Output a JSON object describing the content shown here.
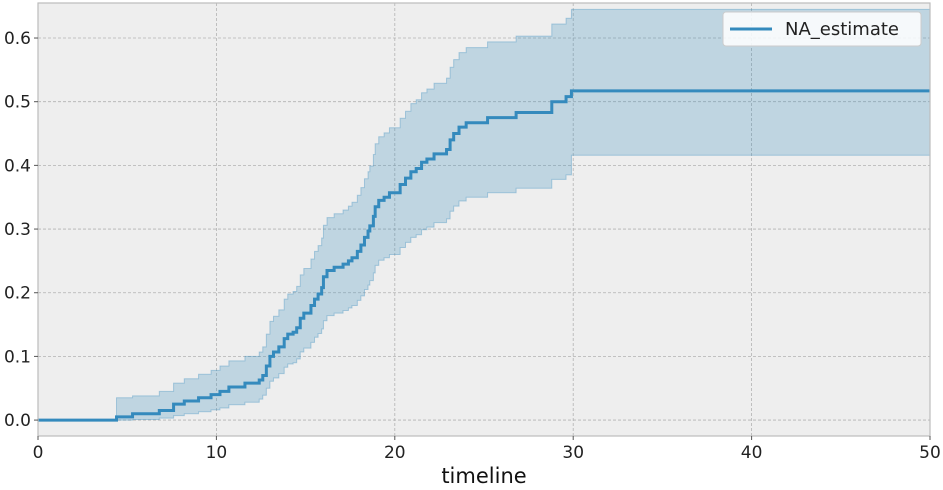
{
  "chart_data": {
    "type": "line",
    "title": "",
    "xlabel": "timeline",
    "ylabel": "",
    "xlim": [
      0,
      50
    ],
    "ylim": [
      -0.025,
      0.655
    ],
    "x_ticks": [
      0,
      10,
      20,
      30,
      40,
      50
    ],
    "y_ticks": [
      0.0,
      0.1,
      0.2,
      0.3,
      0.4,
      0.5,
      0.6
    ],
    "grid": true,
    "legend": {
      "placement": "top-right",
      "entries": [
        "NA_estimate"
      ]
    },
    "colors": {
      "line": "#348ABD",
      "band": "#348ABD",
      "background": "#EEEEEE",
      "grid": "#B2B2B2"
    },
    "series": [
      {
        "name": "NA_estimate",
        "step": "post",
        "points": [
          [
            0,
            0.0
          ],
          [
            4.4,
            0.005
          ],
          [
            5.3,
            0.01
          ],
          [
            6.8,
            0.015
          ],
          [
            7.6,
            0.025
          ],
          [
            8.2,
            0.03
          ],
          [
            9.0,
            0.035
          ],
          [
            9.7,
            0.04
          ],
          [
            10.2,
            0.045
          ],
          [
            10.7,
            0.052
          ],
          [
            11.6,
            0.058
          ],
          [
            12.4,
            0.063
          ],
          [
            12.6,
            0.07
          ],
          [
            12.8,
            0.085
          ],
          [
            13.0,
            0.1
          ],
          [
            13.2,
            0.107
          ],
          [
            13.5,
            0.115
          ],
          [
            13.8,
            0.128
          ],
          [
            14.0,
            0.135
          ],
          [
            14.3,
            0.138
          ],
          [
            14.5,
            0.145
          ],
          [
            14.7,
            0.16
          ],
          [
            14.9,
            0.168
          ],
          [
            15.3,
            0.18
          ],
          [
            15.5,
            0.19
          ],
          [
            15.7,
            0.198
          ],
          [
            15.9,
            0.208
          ],
          [
            16.0,
            0.225
          ],
          [
            16.2,
            0.235
          ],
          [
            16.6,
            0.24
          ],
          [
            17.1,
            0.245
          ],
          [
            17.4,
            0.25
          ],
          [
            17.6,
            0.255
          ],
          [
            17.9,
            0.265
          ],
          [
            18.1,
            0.275
          ],
          [
            18.3,
            0.287
          ],
          [
            18.5,
            0.297
          ],
          [
            18.6,
            0.305
          ],
          [
            18.8,
            0.32
          ],
          [
            18.9,
            0.335
          ],
          [
            19.1,
            0.345
          ],
          [
            19.4,
            0.35
          ],
          [
            19.7,
            0.357
          ],
          [
            20.3,
            0.37
          ],
          [
            20.6,
            0.38
          ],
          [
            20.9,
            0.39
          ],
          [
            21.2,
            0.395
          ],
          [
            21.5,
            0.405
          ],
          [
            21.8,
            0.41
          ],
          [
            22.2,
            0.418
          ],
          [
            22.9,
            0.425
          ],
          [
            23.1,
            0.44
          ],
          [
            23.3,
            0.45
          ],
          [
            23.6,
            0.46
          ],
          [
            24.0,
            0.467
          ],
          [
            25.2,
            0.475
          ],
          [
            26.8,
            0.483
          ],
          [
            28.8,
            0.5
          ],
          [
            29.6,
            0.508
          ],
          [
            29.9,
            0.517
          ],
          [
            50,
            0.517
          ]
        ],
        "lower": [
          [
            0,
            0.0
          ],
          [
            4.4,
            0.0
          ],
          [
            5.3,
            0.001
          ],
          [
            6.8,
            0.003
          ],
          [
            7.6,
            0.007
          ],
          [
            8.2,
            0.01
          ],
          [
            9.0,
            0.013
          ],
          [
            9.7,
            0.016
          ],
          [
            10.2,
            0.019
          ],
          [
            10.7,
            0.024
          ],
          [
            11.6,
            0.028
          ],
          [
            12.4,
            0.033
          ],
          [
            12.6,
            0.039
          ],
          [
            12.8,
            0.05
          ],
          [
            13.0,
            0.061
          ],
          [
            13.2,
            0.066
          ],
          [
            13.5,
            0.073
          ],
          [
            13.8,
            0.083
          ],
          [
            14.0,
            0.088
          ],
          [
            14.3,
            0.09
          ],
          [
            14.5,
            0.096
          ],
          [
            14.7,
            0.107
          ],
          [
            14.9,
            0.113
          ],
          [
            15.3,
            0.122
          ],
          [
            15.5,
            0.13
          ],
          [
            15.7,
            0.136
          ],
          [
            15.9,
            0.143
          ],
          [
            16.0,
            0.156
          ],
          [
            16.2,
            0.164
          ],
          [
            16.6,
            0.168
          ],
          [
            17.1,
            0.172
          ],
          [
            17.4,
            0.176
          ],
          [
            17.6,
            0.18
          ],
          [
            17.9,
            0.188
          ],
          [
            18.1,
            0.195
          ],
          [
            18.3,
            0.205
          ],
          [
            18.5,
            0.212
          ],
          [
            18.6,
            0.219
          ],
          [
            18.8,
            0.231
          ],
          [
            18.9,
            0.243
          ],
          [
            19.1,
            0.251
          ],
          [
            19.4,
            0.255
          ],
          [
            19.7,
            0.26
          ],
          [
            20.3,
            0.271
          ],
          [
            20.6,
            0.279
          ],
          [
            20.9,
            0.287
          ],
          [
            21.2,
            0.291
          ],
          [
            21.5,
            0.299
          ],
          [
            21.8,
            0.303
          ],
          [
            22.2,
            0.31
          ],
          [
            22.9,
            0.316
          ],
          [
            23.1,
            0.328
          ],
          [
            23.3,
            0.336
          ],
          [
            23.6,
            0.344
          ],
          [
            24.0,
            0.35
          ],
          [
            25.2,
            0.357
          ],
          [
            26.8,
            0.364
          ],
          [
            28.8,
            0.378
          ],
          [
            29.6,
            0.385
          ],
          [
            29.9,
            0.416
          ],
          [
            50,
            0.416
          ]
        ],
        "upper": [
          [
            0,
            0.0
          ],
          [
            4.4,
            0.035
          ],
          [
            5.3,
            0.038
          ],
          [
            6.8,
            0.045
          ],
          [
            7.6,
            0.058
          ],
          [
            8.2,
            0.065
          ],
          [
            9.0,
            0.072
          ],
          [
            9.7,
            0.078
          ],
          [
            10.2,
            0.085
          ],
          [
            10.7,
            0.093
          ],
          [
            11.6,
            0.1
          ],
          [
            12.4,
            0.107
          ],
          [
            12.6,
            0.115
          ],
          [
            12.8,
            0.135
          ],
          [
            13.0,
            0.155
          ],
          [
            13.2,
            0.163
          ],
          [
            13.5,
            0.173
          ],
          [
            13.8,
            0.19
          ],
          [
            14.0,
            0.198
          ],
          [
            14.3,
            0.202
          ],
          [
            14.5,
            0.21
          ],
          [
            14.7,
            0.228
          ],
          [
            14.9,
            0.238
          ],
          [
            15.3,
            0.253
          ],
          [
            15.5,
            0.265
          ],
          [
            15.7,
            0.274
          ],
          [
            15.9,
            0.286
          ],
          [
            16.0,
            0.306
          ],
          [
            16.2,
            0.318
          ],
          [
            16.6,
            0.324
          ],
          [
            17.1,
            0.33
          ],
          [
            17.4,
            0.336
          ],
          [
            17.6,
            0.342
          ],
          [
            17.9,
            0.353
          ],
          [
            18.1,
            0.365
          ],
          [
            18.3,
            0.379
          ],
          [
            18.5,
            0.39
          ],
          [
            18.6,
            0.399
          ],
          [
            18.8,
            0.417
          ],
          [
            18.9,
            0.434
          ],
          [
            19.1,
            0.445
          ],
          [
            19.4,
            0.451
          ],
          [
            19.7,
            0.459
          ],
          [
            20.3,
            0.474
          ],
          [
            20.6,
            0.485
          ],
          [
            20.9,
            0.497
          ],
          [
            21.2,
            0.503
          ],
          [
            21.5,
            0.514
          ],
          [
            21.8,
            0.52
          ],
          [
            22.2,
            0.529
          ],
          [
            22.9,
            0.537
          ],
          [
            23.1,
            0.554
          ],
          [
            23.3,
            0.566
          ],
          [
            23.6,
            0.577
          ],
          [
            24.0,
            0.585
          ],
          [
            25.2,
            0.594
          ],
          [
            26.8,
            0.603
          ],
          [
            28.8,
            0.622
          ],
          [
            29.6,
            0.631
          ],
          [
            29.9,
            0.645
          ],
          [
            50,
            0.645
          ]
        ]
      }
    ]
  }
}
